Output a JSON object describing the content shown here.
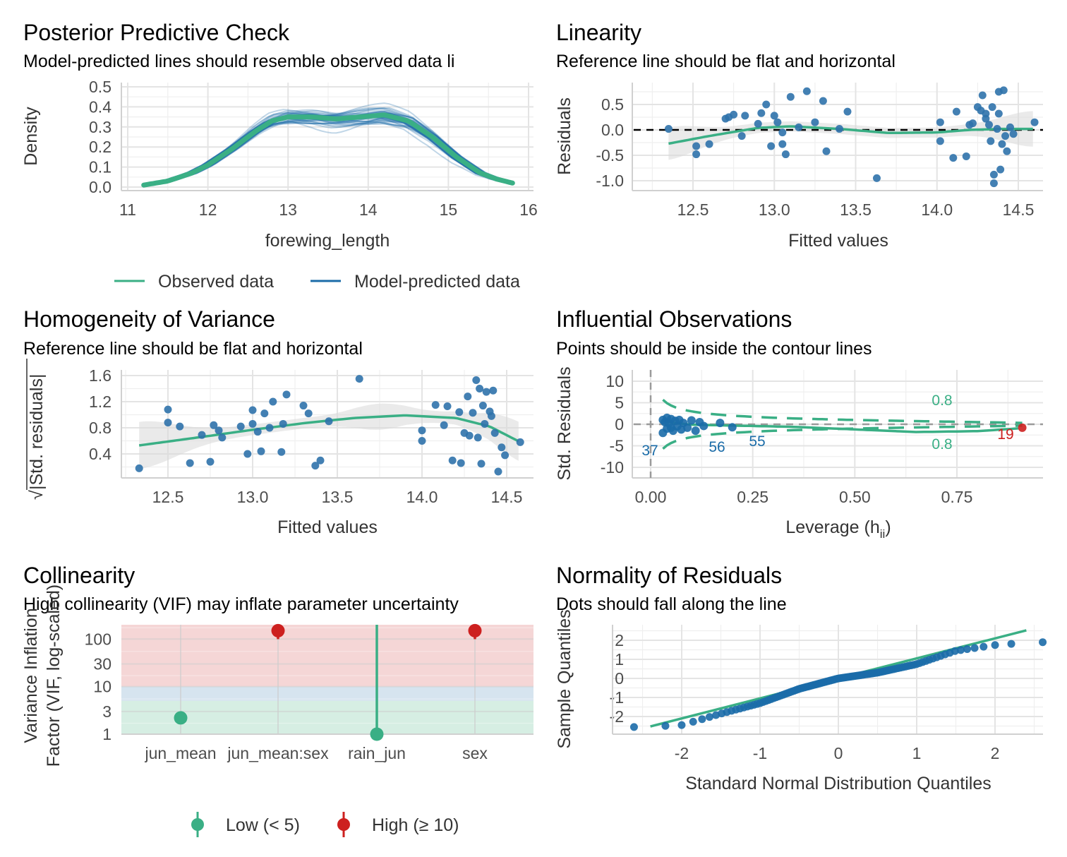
{
  "colors": {
    "observed": "#3aaf85",
    "predicted": "#1b6ca8",
    "point": "#2f72ab",
    "high": "#cd201f",
    "low": "#3aaf85",
    "band_red": "#f5d6d6",
    "band_blue": "#d6e4ef",
    "band_green": "#d6eee3",
    "ci_fill": "#d9d9d9"
  },
  "panels": {
    "ppc": {
      "title": "Posterior Predictive Check",
      "subtitle": "Model-predicted lines should resemble observed data li",
      "xlabel": "forewing_length",
      "ylabel": "Density",
      "legend": [
        "Observed data",
        "Model-predicted data"
      ],
      "xticks": [
        "11",
        "12",
        "13",
        "14",
        "15",
        "16"
      ],
      "yticks": [
        "0.0",
        "0.1",
        "0.2",
        "0.3",
        "0.4",
        "0.5"
      ]
    },
    "linearity": {
      "title": "Linearity",
      "subtitle": "Reference line should be flat and horizontal",
      "xlabel": "Fitted values",
      "ylabel": "Residuals",
      "xticks": [
        "12.5",
        "13.0",
        "13.5",
        "14.0",
        "14.5"
      ],
      "yticks": [
        "0.5",
        "0.0",
        "-0.5",
        "-1.0"
      ]
    },
    "homogeneity": {
      "title": "Homogeneity of Variance",
      "subtitle": "Reference line should be flat and horizontal",
      "xlabel": "Fitted values",
      "ylabel": "|Std. residuals|",
      "ylabel_root": "√",
      "xticks": [
        "12.5",
        "13.0",
        "13.5",
        "14.0",
        "14.5"
      ],
      "yticks": [
        "1.6",
        "1.2",
        "0.8",
        "0.4"
      ]
    },
    "influential": {
      "title": "Influential Observations",
      "subtitle": "Points should be inside the contour lines",
      "xlabel": "Leverage (h",
      "xlabel_sub": "ii",
      "xlabel_end": ")",
      "ylabel": "Std. Residuals",
      "xticks": [
        "0.00",
        "0.25",
        "0.50",
        "0.75"
      ],
      "yticks": [
        "10",
        "5",
        "0",
        "-5",
        "-10"
      ],
      "contour_label_top": "0.8",
      "contour_label_bottom": "0.8",
      "point_labels": [
        "37",
        "56",
        "55",
        "19"
      ]
    },
    "collinearity": {
      "title": "Collinearity",
      "subtitle": "High collinearity (VIF) may inflate parameter uncertainty",
      "ylabel_line1": "Variance Inflation",
      "ylabel_line2": "Factor (VIF, log-scaled)",
      "xticks": [
        "jun_mean",
        "jun_mean:sex",
        "rain_jun",
        "sex"
      ],
      "yticks": [
        "100",
        "30",
        "10",
        "3",
        "1"
      ],
      "legend": [
        "Low (< 5)",
        "High (≥ 10)"
      ]
    },
    "normality": {
      "title": "Normality of Residuals",
      "subtitle": "Dots should fall along the line",
      "xlabel": "Standard Normal Distribution Quantiles",
      "ylabel": "Sample Quantiles",
      "xticks": [
        "-2",
        "-1",
        "0",
        "1",
        "2"
      ],
      "yticks": [
        "2",
        "1",
        "0",
        "-1",
        "-2"
      ]
    }
  },
  "chart_data": [
    {
      "panel": "ppc",
      "type": "line",
      "title": "Posterior Predictive Check",
      "xlabel": "forewing_length",
      "ylabel": "Density",
      "xlim": [
        11,
        16
      ],
      "ylim": [
        0,
        0.5
      ],
      "series": [
        {
          "name": "Observed data",
          "x": [
            11.2,
            11.5,
            11.8,
            12.0,
            12.3,
            12.6,
            12.8,
            13.0,
            13.3,
            13.6,
            13.9,
            14.2,
            14.5,
            14.8,
            15.1,
            15.4,
            15.6,
            15.8
          ],
          "values": [
            0.01,
            0.03,
            0.07,
            0.11,
            0.19,
            0.28,
            0.33,
            0.35,
            0.35,
            0.34,
            0.35,
            0.36,
            0.33,
            0.25,
            0.15,
            0.07,
            0.04,
            0.02
          ]
        }
      ]
    },
    {
      "panel": "linearity",
      "type": "scatter",
      "title": "Linearity",
      "xlabel": "Fitted values",
      "ylabel": "Residuals",
      "xlim": [
        12.3,
        14.65
      ],
      "ylim": [
        -1.1,
        0.85
      ],
      "points": [
        [
          12.35,
          0.02
        ],
        [
          12.52,
          -0.32
        ],
        [
          12.52,
          -0.48
        ],
        [
          12.6,
          -0.28
        ],
        [
          12.7,
          0.22
        ],
        [
          12.72,
          0.25
        ],
        [
          12.75,
          0.3
        ],
        [
          12.8,
          -0.12
        ],
        [
          12.82,
          0.28
        ],
        [
          12.9,
          0.12
        ],
        [
          12.92,
          0.33
        ],
        [
          12.95,
          0.5
        ],
        [
          12.98,
          -0.32
        ],
        [
          13.0,
          0.28
        ],
        [
          13.02,
          0.15
        ],
        [
          13.05,
          -0.05
        ],
        [
          13.05,
          -0.28
        ],
        [
          13.07,
          -0.48
        ],
        [
          13.1,
          0.65
        ],
        [
          13.15,
          0.05
        ],
        [
          13.2,
          0.76
        ],
        [
          13.25,
          0.15
        ],
        [
          13.3,
          0.57
        ],
        [
          13.32,
          -0.42
        ],
        [
          13.4,
          0.02
        ],
        [
          13.45,
          0.36
        ],
        [
          13.63,
          -0.95
        ],
        [
          14.02,
          0.15
        ],
        [
          14.02,
          -0.22
        ],
        [
          14.1,
          -0.55
        ],
        [
          14.12,
          0.36
        ],
        [
          14.18,
          -0.52
        ],
        [
          14.2,
          0.1
        ],
        [
          14.22,
          0.13
        ],
        [
          14.25,
          0.45
        ],
        [
          14.27,
          0.38
        ],
        [
          14.28,
          0.68
        ],
        [
          14.3,
          0.32
        ],
        [
          14.3,
          0.22
        ],
        [
          14.32,
          0.1
        ],
        [
          14.33,
          -0.22
        ],
        [
          14.34,
          0.45
        ],
        [
          14.35,
          -0.88
        ],
        [
          14.35,
          -1.05
        ],
        [
          14.37,
          0.02
        ],
        [
          14.38,
          0.32
        ],
        [
          14.38,
          0.75
        ],
        [
          14.39,
          -0.78
        ],
        [
          14.4,
          -0.28
        ],
        [
          14.41,
          0.78
        ],
        [
          14.42,
          -0.12
        ],
        [
          14.43,
          -0.42
        ],
        [
          14.45,
          0.05
        ],
        [
          14.47,
          -0.08
        ],
        [
          14.6,
          0.15
        ]
      ]
    },
    {
      "panel": "homogeneity",
      "type": "scatter",
      "title": "Homogeneity of Variance",
      "xlabel": "Fitted values",
      "xlim": [
        12.3,
        14.65
      ],
      "ylim": [
        0.1,
        1.65
      ],
      "points": [
        [
          12.33,
          0.18
        ],
        [
          12.5,
          1.08
        ],
        [
          12.5,
          0.88
        ],
        [
          12.57,
          0.82
        ],
        [
          12.63,
          0.26
        ],
        [
          12.7,
          0.69
        ],
        [
          12.75,
          0.28
        ],
        [
          12.77,
          0.84
        ],
        [
          12.8,
          0.76
        ],
        [
          12.82,
          0.65
        ],
        [
          12.93,
          0.82
        ],
        [
          12.97,
          0.4
        ],
        [
          13.0,
          1.07
        ],
        [
          13.0,
          0.86
        ],
        [
          13.03,
          0.74
        ],
        [
          13.05,
          0.44
        ],
        [
          13.07,
          1.02
        ],
        [
          13.1,
          0.8
        ],
        [
          13.12,
          1.2
        ],
        [
          13.17,
          0.43
        ],
        [
          13.18,
          0.86
        ],
        [
          13.2,
          1.31
        ],
        [
          13.3,
          1.14
        ],
        [
          13.33,
          1.02
        ],
        [
          13.37,
          0.22
        ],
        [
          13.4,
          0.3
        ],
        [
          13.45,
          0.9
        ],
        [
          13.63,
          1.55
        ],
        [
          14.0,
          0.76
        ],
        [
          14.0,
          0.6
        ],
        [
          14.08,
          1.15
        ],
        [
          14.13,
          0.84
        ],
        [
          14.15,
          1.13
        ],
        [
          14.18,
          0.3
        ],
        [
          14.22,
          1.04
        ],
        [
          14.23,
          0.26
        ],
        [
          14.25,
          0.72
        ],
        [
          14.27,
          1.28
        ],
        [
          14.28,
          0.68
        ],
        [
          14.3,
          1.03
        ],
        [
          14.32,
          1.53
        ],
        [
          14.33,
          0.65
        ],
        [
          14.34,
          1.4
        ],
        [
          14.35,
          0.25
        ],
        [
          14.36,
          1.14
        ],
        [
          14.37,
          0.86
        ],
        [
          14.38,
          1.35
        ],
        [
          14.4,
          1.05
        ],
        [
          14.41,
          0.98
        ],
        [
          14.42,
          1.37
        ],
        [
          14.43,
          0.72
        ],
        [
          14.45,
          0.13
        ],
        [
          14.47,
          0.5
        ],
        [
          14.49,
          0.38
        ],
        [
          14.58,
          0.58
        ]
      ]
    },
    {
      "panel": "influential",
      "type": "scatter",
      "title": "Influential Observations",
      "xlabel": "Leverage (hii)",
      "ylabel": "Std. Residuals",
      "xlim": [
        -0.05,
        0.93
      ],
      "ylim": [
        -11.5,
        11.5
      ],
      "points": [
        [
          0.03,
          -2.0
        ],
        [
          0.03,
          1.0
        ],
        [
          0.035,
          0.5
        ],
        [
          0.04,
          -1.0
        ],
        [
          0.04,
          1.5
        ],
        [
          0.045,
          0.2
        ],
        [
          0.05,
          -0.8
        ],
        [
          0.05,
          1.2
        ],
        [
          0.055,
          -1.5
        ],
        [
          0.06,
          0.8
        ],
        [
          0.065,
          -0.5
        ],
        [
          0.07,
          1.0
        ],
        [
          0.075,
          -1.2
        ],
        [
          0.08,
          0.3
        ],
        [
          0.09,
          -0.8
        ],
        [
          0.1,
          0.9
        ],
        [
          0.11,
          -1.5
        ],
        [
          0.12,
          0.5
        ],
        [
          0.13,
          -0.4
        ],
        [
          0.17,
          0.3
        ],
        [
          0.2,
          -0.7
        ],
        [
          0.91,
          -0.8
        ]
      ],
      "influential_points": [
        {
          "label": "37",
          "leverage": 0.03,
          "residual": -2.0
        },
        {
          "label": "56",
          "leverage": 0.14,
          "residual": -2.2
        },
        {
          "label": "55",
          "leverage": 0.2,
          "residual": -1.8
        },
        {
          "label": "19",
          "leverage": 0.91,
          "residual": -0.8
        }
      ]
    },
    {
      "panel": "collinearity",
      "type": "scatter",
      "title": "Collinearity",
      "categories": [
        "jun_mean",
        "jun_mean:sex",
        "rain_jun",
        "sex"
      ],
      "values": [
        2.2,
        150,
        1.0,
        150
      ],
      "levels": [
        "low",
        "high",
        "low",
        "high"
      ],
      "ylim": [
        1,
        200
      ],
      "yscale": "log"
    },
    {
      "panel": "normality",
      "type": "scatter",
      "title": "Normality of Residuals",
      "xlabel": "Standard Normal Distribution Quantiles",
      "ylabel": "Sample Quantiles",
      "xlim": [
        -2.5,
        2.5
      ],
      "ylim": [
        -2.8,
        2.6
      ],
      "reference_line": {
        "slope": 1.05,
        "intercept": 0.0
      }
    }
  ]
}
